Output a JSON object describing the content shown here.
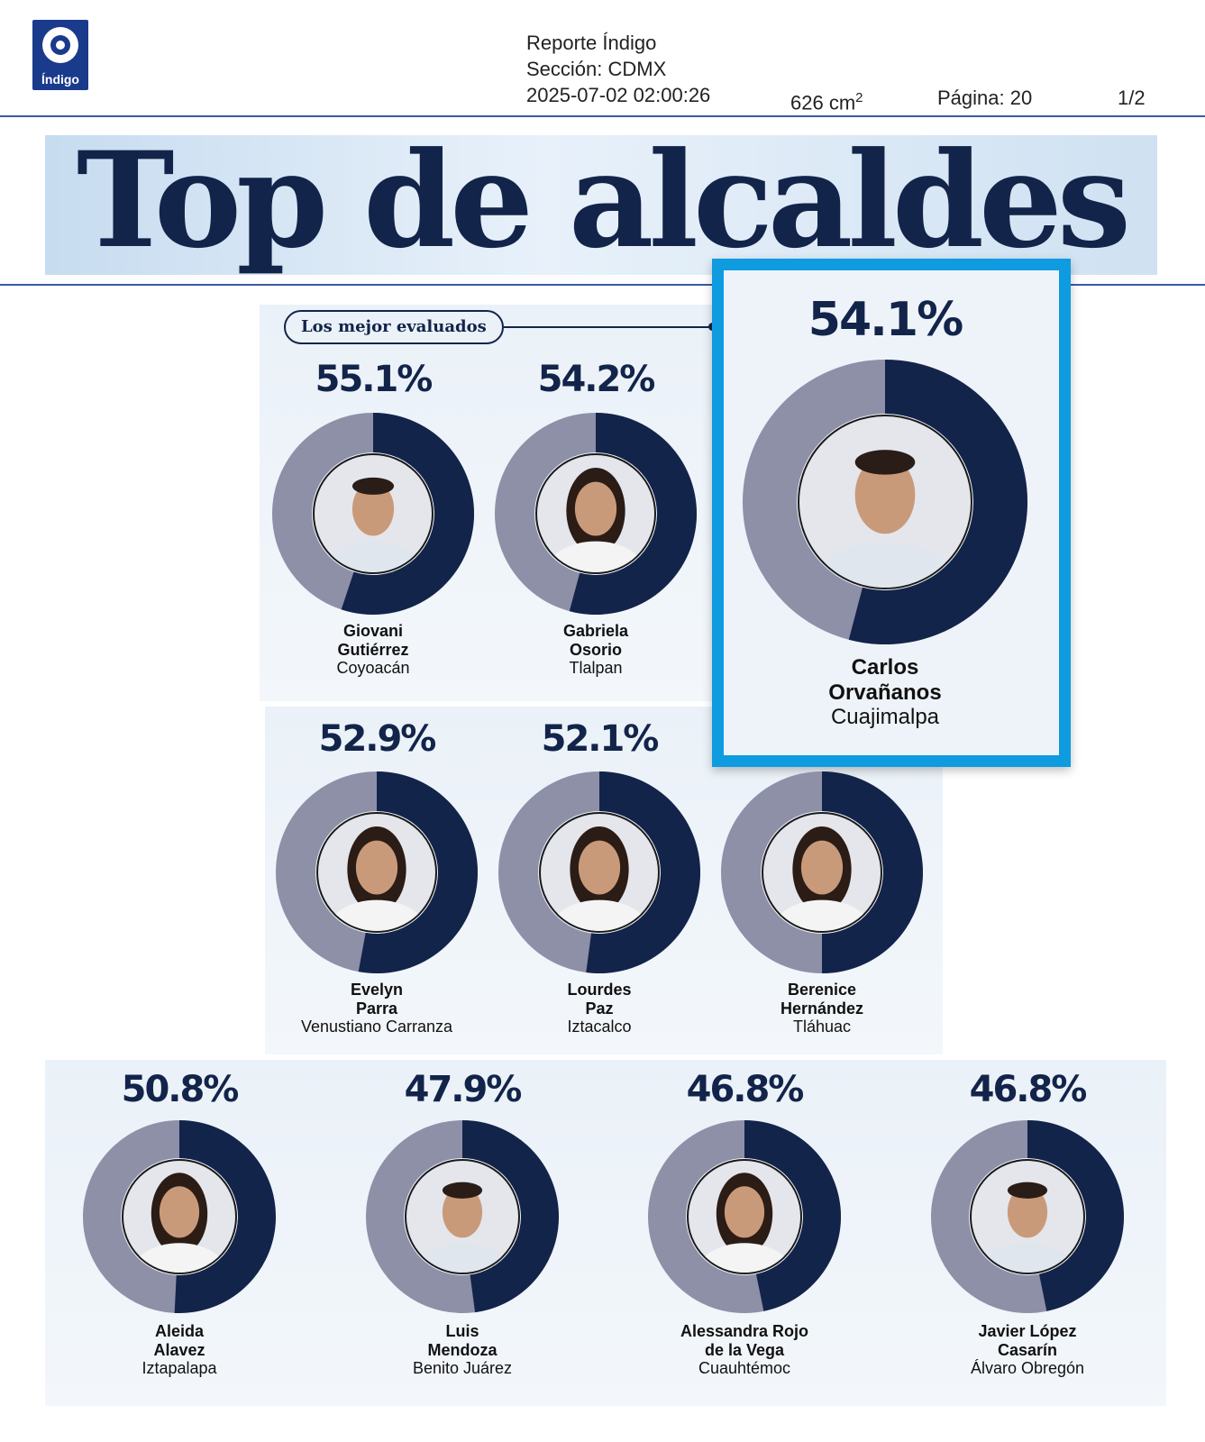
{
  "header": {
    "logo_text": "Índigo",
    "publication": "Reporte Índigo",
    "section": "Sección: CDMX",
    "datetime": "2025-07-02 02:00:26",
    "area": "626 cm",
    "area_exp": "2",
    "page": "Página: 20",
    "page_count": "1/2"
  },
  "title": "Top de alcaldes",
  "badge": "Los mejor evaluados",
  "colors": {
    "dark": "#13244a",
    "gray": "#8e90a8",
    "accent": "#0e9be0"
  },
  "mayors": [
    {
      "pct_label": "55.1%",
      "value": 55.1,
      "first": "Giovani",
      "last": "Gutiérrez",
      "borough": "Coyoacán",
      "photo": "portrait-man-icon"
    },
    {
      "pct_label": "54.2%",
      "value": 54.2,
      "first": "Gabriela",
      "last": "Osorio",
      "borough": "Tlalpan",
      "photo": "portrait-woman-icon"
    },
    {
      "pct_label": "54.1%",
      "value": 54.1,
      "first": "Carlos",
      "last": "Orvañanos",
      "borough": "Cuajimalpa",
      "photo": "portrait-man-icon"
    },
    {
      "pct_label": "52.9%",
      "value": 52.9,
      "first": "Evelyn",
      "last": "Parra",
      "borough": "Venustiano Carranza",
      "photo": "portrait-woman-icon"
    },
    {
      "pct_label": "52.1%",
      "value": 52.1,
      "first": "Lourdes",
      "last": "Paz",
      "borough": "Iztacalco",
      "photo": "portrait-woman-icon"
    },
    {
      "pct_label": "",
      "value": null,
      "first": "Berenice",
      "last": "Hernández",
      "borough": "Tláhuac",
      "photo": "portrait-woman-icon"
    },
    {
      "pct_label": "50.8%",
      "value": 50.8,
      "first": "Aleida",
      "last": "Alavez",
      "borough": "Iztapalapa",
      "photo": "portrait-woman-icon"
    },
    {
      "pct_label": "47.9%",
      "value": 47.9,
      "first": "Luis",
      "last": "Mendoza",
      "borough": "Benito Juárez",
      "photo": "portrait-man-icon"
    },
    {
      "pct_label": "46.8%",
      "value": 46.8,
      "first": "Alessandra Rojo",
      "last": "de la Vega",
      "borough": "Cuauhtémoc",
      "photo": "portrait-woman-icon"
    },
    {
      "pct_label": "46.8%",
      "value": 46.8,
      "first": "Javier López",
      "last": "Casarín",
      "borough": "Álvaro Obregón",
      "photo": "portrait-man-icon"
    }
  ]
}
